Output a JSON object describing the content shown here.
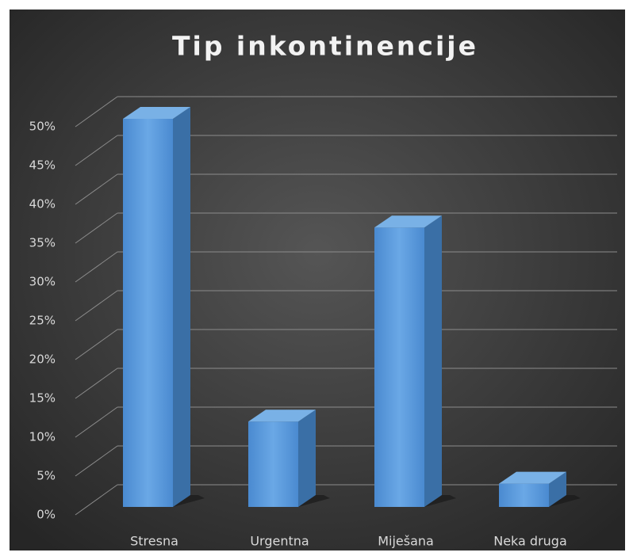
{
  "chart_data": {
    "type": "bar3d",
    "title": "Tip inkontinencije",
    "categories": [
      "Stresna",
      "Urgentna",
      "Miješana",
      "Neka druga"
    ],
    "values": [
      50,
      11,
      36,
      3
    ],
    "color": "#5b9bd5",
    "ylim": [
      0,
      50
    ],
    "yticks": [
      {
        "value": 0,
        "label": "0%"
      },
      {
        "value": 5,
        "label": "5%"
      },
      {
        "value": 10,
        "label": "10%"
      },
      {
        "value": 15,
        "label": "15%"
      },
      {
        "value": 20,
        "label": "20%"
      },
      {
        "value": 25,
        "label": "25%"
      },
      {
        "value": 30,
        "label": "30%"
      },
      {
        "value": 35,
        "label": "35%"
      },
      {
        "value": 40,
        "label": "40%"
      },
      {
        "value": 45,
        "label": "45%"
      },
      {
        "value": 50,
        "label": "50%"
      }
    ],
    "grid": true
  }
}
